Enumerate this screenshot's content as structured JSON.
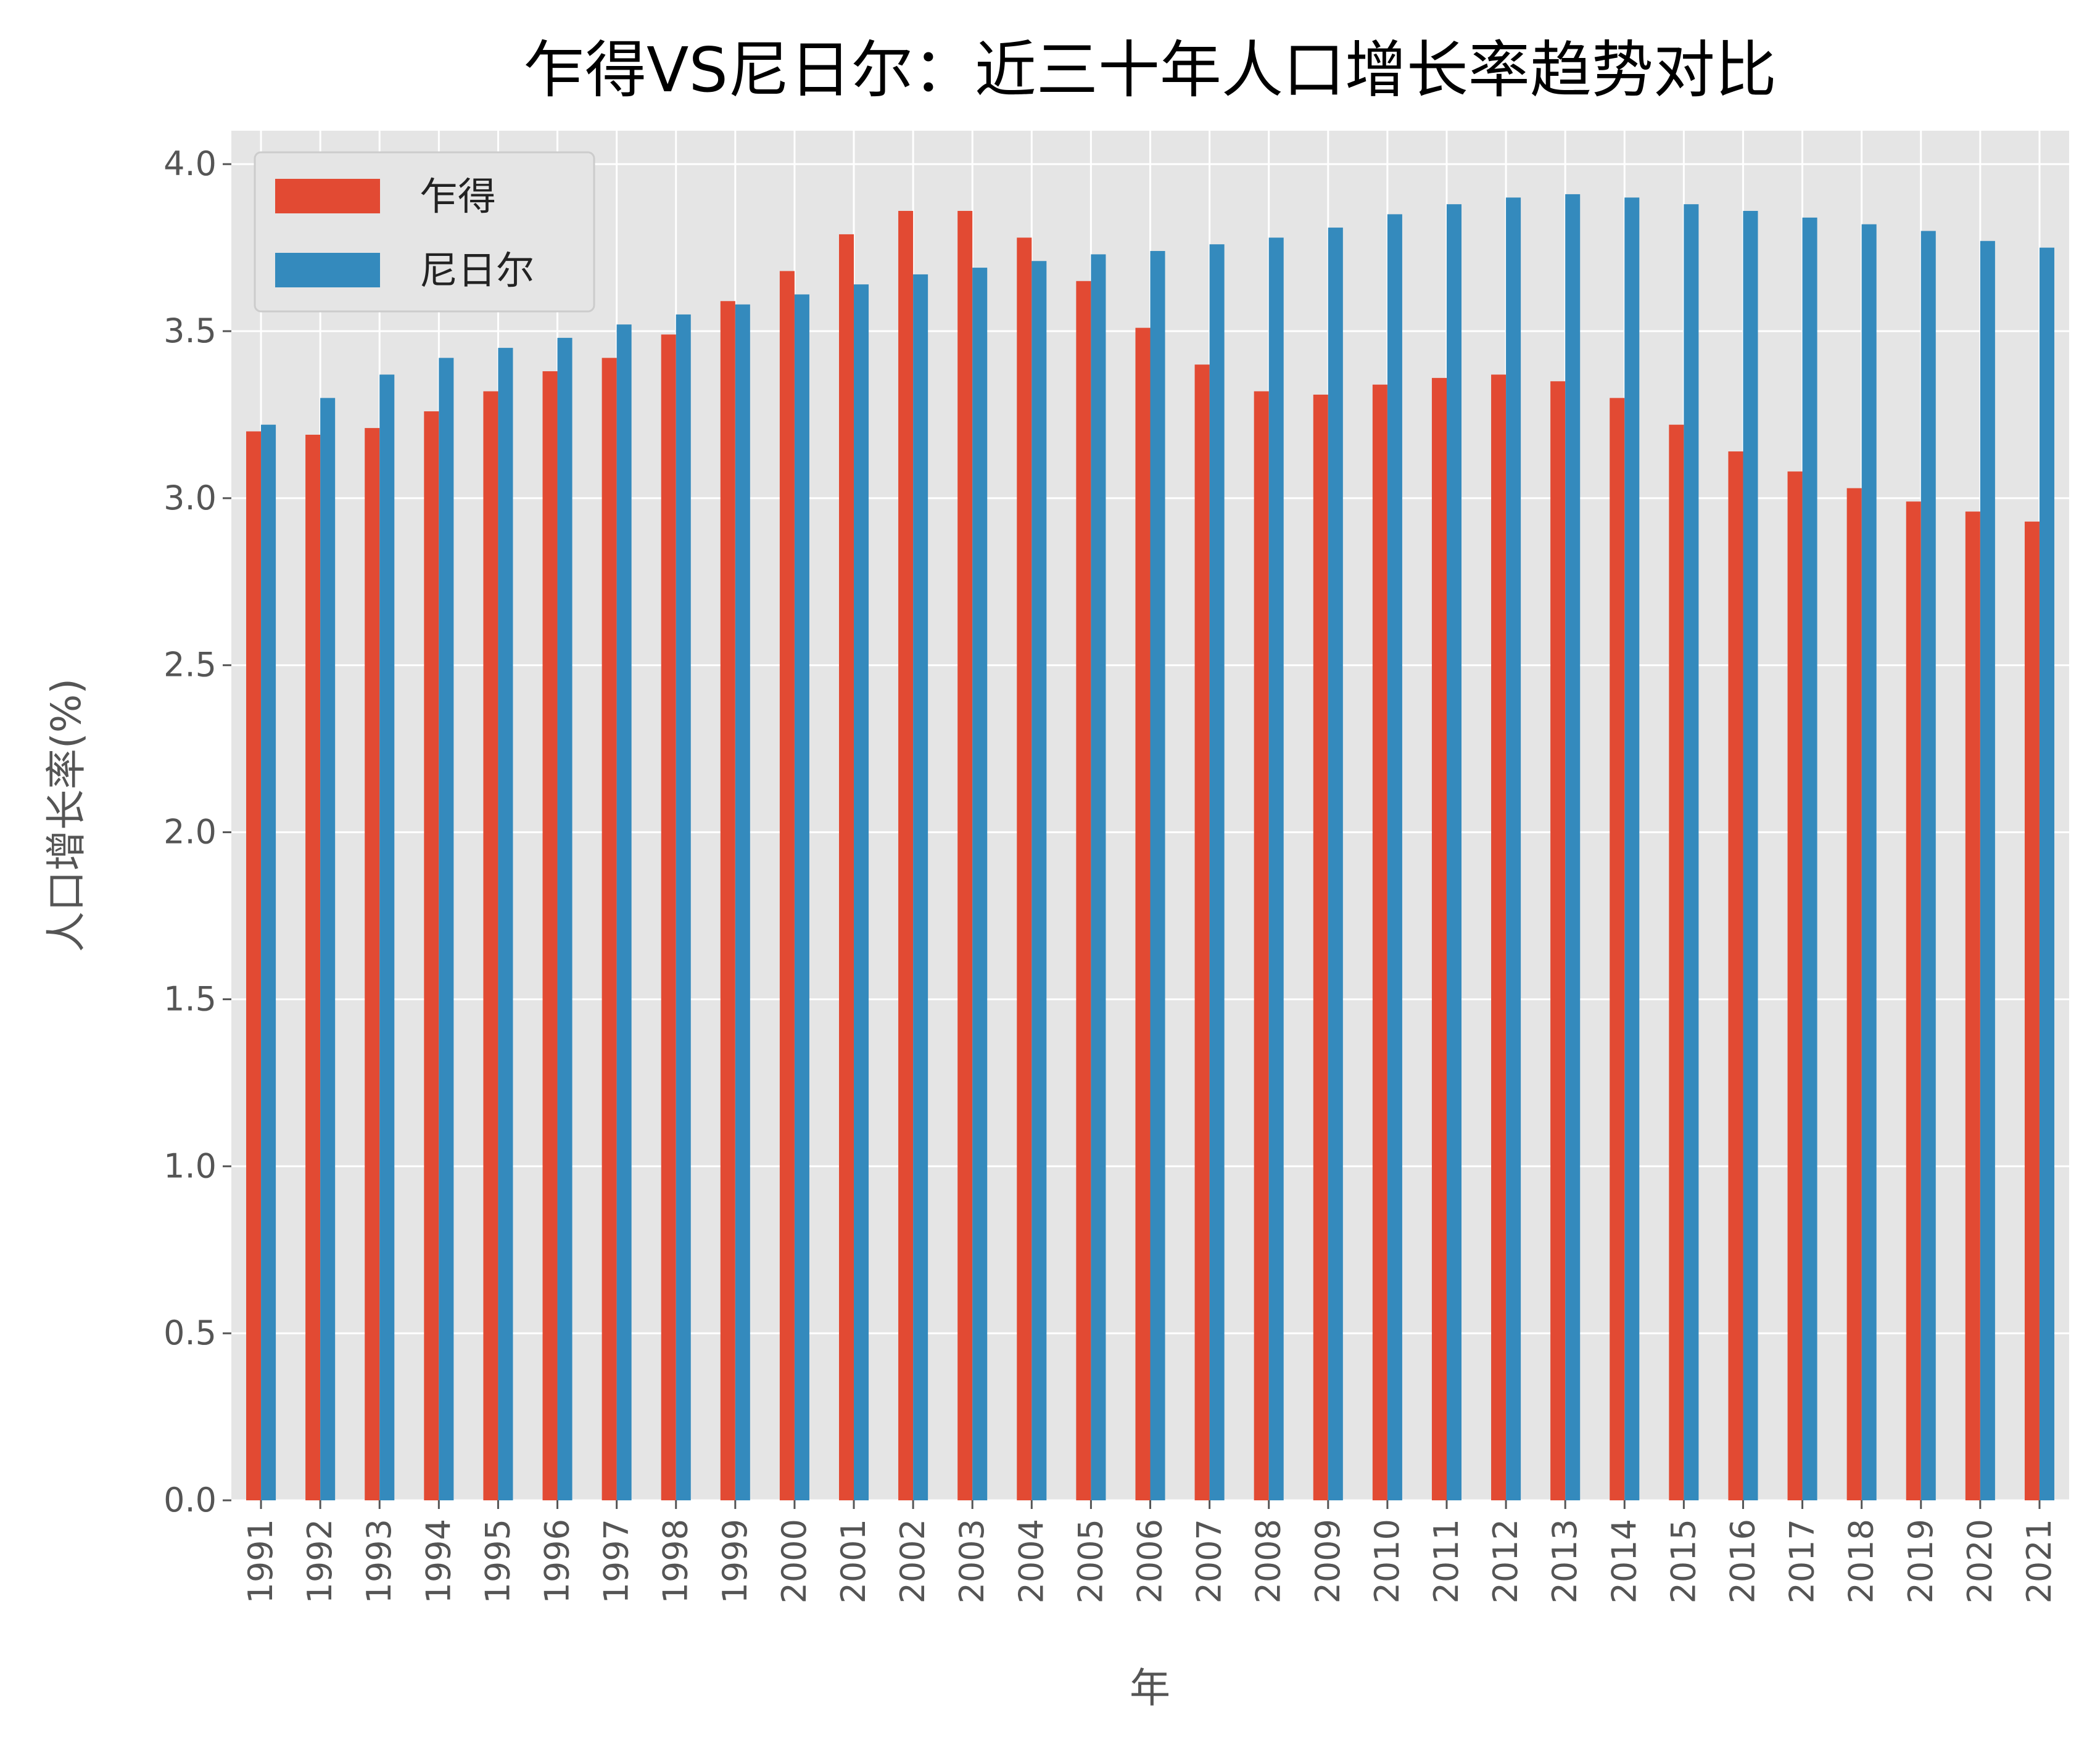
{
  "chart_data": {
    "type": "bar",
    "title": "乍得VS尼日尔：近三十年人口增长率趋势对比",
    "xlabel": "年",
    "ylabel": "人口增长率(%)",
    "ylim": [
      0,
      4.1
    ],
    "yticks": [
      "0.0",
      "0.5",
      "1.0",
      "1.5",
      "2.0",
      "2.5",
      "3.0",
      "3.5",
      "4.0"
    ],
    "grid": true,
    "legend_position": "top-left",
    "categories": [
      "1991",
      "1992",
      "1993",
      "1994",
      "1995",
      "1996",
      "1997",
      "1998",
      "1999",
      "2000",
      "2001",
      "2002",
      "2003",
      "2004",
      "2005",
      "2006",
      "2007",
      "2008",
      "2009",
      "2010",
      "2011",
      "2012",
      "2013",
      "2014",
      "2015",
      "2016",
      "2017",
      "2018",
      "2019",
      "2020",
      "2021"
    ],
    "series": [
      {
        "name": "乍得",
        "color": "#E24A33",
        "values": [
          3.2,
          3.19,
          3.21,
          3.26,
          3.32,
          3.38,
          3.42,
          3.49,
          3.59,
          3.68,
          3.79,
          3.86,
          3.86,
          3.78,
          3.65,
          3.51,
          3.4,
          3.32,
          3.31,
          3.34,
          3.36,
          3.37,
          3.35,
          3.3,
          3.22,
          3.14,
          3.08,
          3.03,
          2.99,
          2.96,
          2.93
        ]
      },
      {
        "name": "尼日尔",
        "color": "#348ABD",
        "values": [
          3.22,
          3.3,
          3.37,
          3.42,
          3.45,
          3.48,
          3.52,
          3.55,
          3.58,
          3.61,
          3.64,
          3.67,
          3.69,
          3.71,
          3.73,
          3.74,
          3.76,
          3.78,
          3.81,
          3.85,
          3.88,
          3.9,
          3.91,
          3.9,
          3.88,
          3.86,
          3.84,
          3.82,
          3.8,
          3.77,
          3.75
        ]
      }
    ],
    "background_color": "#E5E5E5",
    "grid_color": "#FFFFFF"
  }
}
